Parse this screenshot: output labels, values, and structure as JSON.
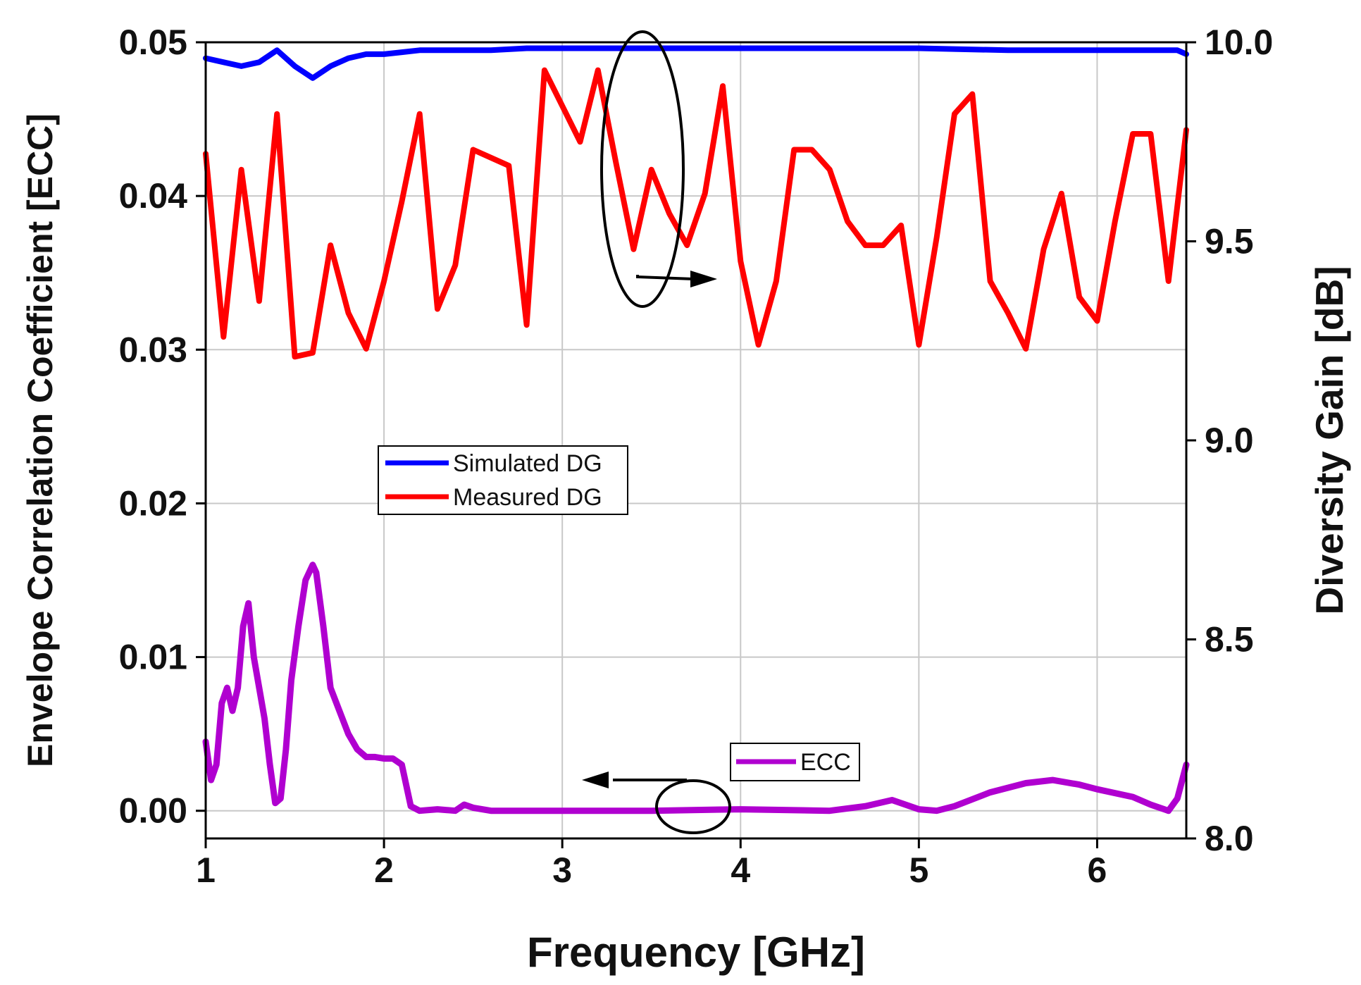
{
  "chart_data": {
    "type": "line",
    "xlabel": "Frequency [GHz]",
    "ylabel_left": "Envelope Correlation Coefficient [ECC]",
    "ylabel_right": "Diversity Gain [dB]",
    "xlim": [
      1,
      6.5
    ],
    "ylim_left": [
      -0.0018,
      0.05
    ],
    "ylim_right": [
      8.0,
      10.0
    ],
    "grid": true,
    "x_ticks": [
      1,
      2,
      3,
      4,
      5,
      6
    ],
    "x_tick_labels": [
      "1",
      "2",
      "3",
      "4",
      "5",
      "6"
    ],
    "y_left_ticks": [
      0,
      0.01,
      0.02,
      0.03,
      0.04,
      0.05
    ],
    "y_left_tick_labels": [
      "0.00",
      "0.01",
      "0.02",
      "0.03",
      "0.04",
      "0.05"
    ],
    "y_right_ticks": [
      8.0,
      8.5,
      9.0,
      9.5,
      10.0
    ],
    "y_right_tick_labels": [
      "8.0",
      "8.5",
      "9.0",
      "9.5",
      "10.0"
    ],
    "legend_dg": [
      {
        "label": "Simulated DG",
        "color": "#0000ff"
      },
      {
        "label": "Measured DG",
        "color": "#ff0000"
      }
    ],
    "legend_ecc": [
      {
        "label": "ECC",
        "color": "#b000d0"
      }
    ],
    "series": [
      {
        "name": "Simulated DG",
        "axis": "right",
        "color": "#0000ff",
        "x": [
          1.0,
          1.1,
          1.2,
          1.3,
          1.4,
          1.5,
          1.6,
          1.7,
          1.8,
          1.9,
          2.0,
          2.1,
          2.2,
          2.4,
          2.6,
          2.8,
          3.0,
          3.5,
          4.0,
          4.5,
          5.0,
          5.5,
          6.0,
          6.3,
          6.45,
          6.5
        ],
        "values": [
          9.96,
          9.95,
          9.94,
          9.95,
          9.98,
          9.94,
          9.91,
          9.94,
          9.96,
          9.97,
          9.97,
          9.975,
          9.98,
          9.98,
          9.98,
          9.985,
          9.985,
          9.985,
          9.985,
          9.985,
          9.985,
          9.98,
          9.98,
          9.98,
          9.98,
          9.97
        ]
      },
      {
        "name": "Measured DG",
        "axis": "right",
        "color": "#ff0000",
        "x": [
          1.0,
          1.1,
          1.2,
          1.3,
          1.4,
          1.5,
          1.6,
          1.7,
          1.8,
          1.9,
          2.0,
          2.1,
          2.2,
          2.3,
          2.4,
          2.5,
          2.6,
          2.7,
          2.8,
          2.9,
          3.0,
          3.1,
          3.2,
          3.3,
          3.4,
          3.5,
          3.6,
          3.7,
          3.8,
          3.9,
          4.0,
          4.1,
          4.2,
          4.3,
          4.4,
          4.5,
          4.6,
          4.7,
          4.8,
          4.9,
          5.0,
          5.1,
          5.2,
          5.3,
          5.4,
          5.5,
          5.6,
          5.7,
          5.8,
          5.9,
          6.0,
          6.1,
          6.2,
          6.3,
          6.4,
          6.5
        ],
        "values": [
          9.72,
          9.26,
          9.68,
          9.35,
          9.82,
          9.21,
          9.22,
          9.49,
          9.32,
          9.23,
          9.4,
          9.6,
          9.82,
          9.33,
          9.44,
          9.73,
          9.71,
          9.69,
          9.29,
          9.93,
          9.84,
          9.75,
          9.93,
          9.7,
          9.48,
          9.68,
          9.57,
          9.49,
          9.62,
          9.89,
          9.45,
          9.24,
          9.4,
          9.73,
          9.73,
          9.68,
          9.55,
          9.49,
          9.49,
          9.54,
          9.24,
          9.51,
          9.82,
          9.87,
          9.4,
          9.32,
          9.23,
          9.48,
          9.62,
          9.36,
          9.3,
          9.55,
          9.77,
          9.77,
          9.4,
          9.78
        ]
      },
      {
        "name": "ECC",
        "axis": "left",
        "color": "#b000d0",
        "x": [
          1.0,
          1.03,
          1.06,
          1.09,
          1.12,
          1.15,
          1.18,
          1.21,
          1.24,
          1.27,
          1.3,
          1.33,
          1.36,
          1.39,
          1.42,
          1.45,
          1.48,
          1.52,
          1.56,
          1.6,
          1.62,
          1.66,
          1.7,
          1.75,
          1.8,
          1.85,
          1.9,
          1.95,
          2.0,
          2.05,
          2.1,
          2.15,
          2.2,
          2.3,
          2.4,
          2.45,
          2.5,
          2.6,
          2.8,
          3.0,
          3.5,
          4.0,
          4.5,
          4.7,
          4.85,
          5.0,
          5.1,
          5.2,
          5.4,
          5.6,
          5.75,
          5.9,
          6.0,
          6.2,
          6.3,
          6.4,
          6.45,
          6.5
        ],
        "values": [
          0.0045,
          0.002,
          0.003,
          0.007,
          0.008,
          0.0065,
          0.008,
          0.012,
          0.0135,
          0.01,
          0.008,
          0.006,
          0.003,
          0.0005,
          0.0008,
          0.004,
          0.0085,
          0.012,
          0.015,
          0.016,
          0.0155,
          0.012,
          0.008,
          0.0065,
          0.005,
          0.004,
          0.0035,
          0.0035,
          0.0034,
          0.0034,
          0.003,
          0.0003,
          0.0,
          0.0001,
          0.0,
          0.0004,
          0.0002,
          0.0,
          0.0,
          0.0,
          0.0,
          0.0001,
          0.0,
          0.0003,
          0.0007,
          0.0001,
          0.0,
          0.0003,
          0.0012,
          0.0018,
          0.002,
          0.0017,
          0.0014,
          0.0009,
          0.0004,
          0.0,
          0.0008,
          0.003
        ]
      }
    ]
  }
}
